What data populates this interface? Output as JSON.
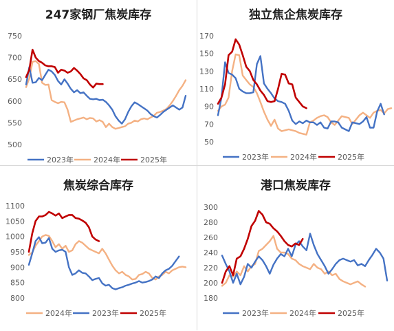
{
  "colors": {
    "2023年": "#4472C4",
    "2024年": "#F4B183",
    "2025年": "#C00000",
    "axis_text": "#595959",
    "title": "#1f1f1f"
  },
  "chart_data": [
    {
      "type": "line",
      "title": "247家钢厂焦炭库存",
      "ylim": [
        500,
        750
      ],
      "yticks": [
        500,
        550,
        600,
        650,
        700,
        750
      ],
      "grid": false,
      "legend_position": "bottom",
      "legend_order": [
        "2023年",
        "2024年",
        "2025年"
      ],
      "series": [
        {
          "name": "2023年",
          "values": [
            638,
            678,
            642,
            643,
            653,
            648,
            660,
            672,
            668,
            660,
            646,
            638,
            650,
            640,
            628,
            620,
            625,
            618,
            620,
            612,
            605,
            604,
            605,
            602,
            603,
            598,
            590,
            580,
            565,
            555,
            548,
            558,
            575,
            588,
            597,
            593,
            588,
            583,
            578,
            570,
            565,
            562,
            568,
            575,
            580,
            585,
            590,
            585,
            580,
            585,
            612
          ]
        },
        {
          "name": "2024年",
          "values": [
            632,
            652,
            690,
            692,
            685,
            642,
            637,
            638,
            602,
            598,
            595,
            598,
            597,
            580,
            552,
            555,
            558,
            560,
            562,
            558,
            561,
            560,
            553,
            556,
            552,
            540,
            548,
            540,
            536,
            538,
            540,
            542,
            548,
            550,
            555,
            553,
            558,
            560,
            558,
            562,
            566,
            573,
            575,
            578,
            582,
            590,
            600,
            612,
            625,
            635,
            648
          ]
        },
        {
          "name": "2025年",
          "values": [
            655,
            672,
            718,
            700,
            692,
            688,
            682,
            680,
            680,
            678,
            665,
            672,
            670,
            665,
            668,
            676,
            670,
            662,
            652,
            648,
            638,
            631,
            640,
            639,
            639
          ]
        }
      ]
    },
    {
      "type": "line",
      "title": "独立焦企焦炭库存",
      "ylim": [
        50,
        170
      ],
      "yticks": [
        50,
        70,
        90,
        110,
        130,
        150,
        170
      ],
      "grid": false,
      "legend_position": "bottom",
      "legend_order": [
        "2023年",
        "2024年",
        "2025年"
      ],
      "series": [
        {
          "name": "2023年",
          "values": [
            80,
            100,
            140,
            128,
            126,
            122,
            110,
            107,
            105,
            105,
            106,
            138,
            147,
            116,
            110,
            105,
            99,
            96,
            95,
            93,
            85,
            74,
            70,
            73,
            71,
            74,
            72,
            72,
            69,
            72,
            66,
            65,
            73,
            73,
            72,
            66,
            64,
            62,
            72,
            71,
            70,
            73,
            78,
            66,
            66,
            84,
            93,
            81
          ]
        },
        {
          "name": "2024年",
          "values": [
            85,
            90,
            92,
            100,
            130,
            149,
            148,
            125,
            120,
            115,
            112,
            105,
            95,
            84,
            75,
            68,
            75,
            65,
            62,
            63,
            64,
            63,
            62,
            60,
            59,
            58,
            72,
            74,
            77,
            79,
            80,
            78,
            72,
            69,
            74,
            79,
            78,
            77,
            70,
            75,
            80,
            83,
            80,
            77,
            83,
            85,
            86,
            82,
            87,
            88
          ]
        },
        {
          "name": "2025年",
          "values": [
            93,
            100,
            115,
            148,
            152,
            166,
            160,
            148,
            135,
            130,
            120,
            115,
            108,
            103,
            96,
            95,
            96,
            110,
            127,
            126,
            116,
            115,
            100,
            95,
            90,
            88
          ]
        }
      ]
    },
    {
      "type": "line",
      "title": "焦炭综合库存",
      "ylim": [
        800,
        1100
      ],
      "yticks": [
        800,
        850,
        900,
        950,
        1000,
        1050,
        1100
      ],
      "grid": false,
      "legend_position": "bottom",
      "legend_order": [
        "2024年",
        "2023年",
        "2025年"
      ],
      "series": [
        {
          "name": "2023年",
          "values": [
            908,
            945,
            985,
            998,
            978,
            980,
            995,
            960,
            950,
            955,
            957,
            950,
            900,
            875,
            880,
            890,
            882,
            880,
            870,
            858,
            862,
            865,
            848,
            840,
            843,
            832,
            828,
            832,
            835,
            840,
            843,
            847,
            850,
            855,
            850,
            852,
            855,
            860,
            870,
            865,
            880,
            890,
            895,
            905,
            920,
            935
          ]
        },
        {
          "name": "2024年",
          "values": [
            940,
            948,
            970,
            985,
            1000,
            1005,
            1002,
            985,
            965,
            975,
            960,
            970,
            950,
            955,
            975,
            985,
            980,
            970,
            960,
            955,
            950,
            945,
            960,
            945,
            925,
            905,
            890,
            880,
            885,
            875,
            870,
            860,
            862,
            875,
            878,
            885,
            880,
            865,
            860,
            870,
            875,
            885,
            880,
            890,
            895,
            900,
            902,
            900
          ]
        },
        {
          "name": "2025年",
          "values": [
            950,
            1010,
            1050,
            1065,
            1065,
            1070,
            1080,
            1075,
            1068,
            1075,
            1060,
            1065,
            1070,
            1070,
            1060,
            1058,
            1052,
            1045,
            1030,
            1000,
            990,
            985
          ]
        }
      ]
    },
    {
      "type": "line",
      "title": "港口焦炭库存",
      "ylim": [
        180,
        300
      ],
      "yticks": [
        180,
        200,
        220,
        240,
        260,
        280,
        300
      ],
      "grid": false,
      "legend_position": "bottom",
      "legend_order": [
        "2023年",
        "2024年",
        "2025年"
      ],
      "series": [
        {
          "name": "2023年",
          "values": [
            236,
            225,
            215,
            200,
            212,
            198,
            208,
            225,
            220,
            228,
            235,
            230,
            222,
            212,
            224,
            232,
            238,
            235,
            245,
            235,
            250,
            255,
            248,
            243,
            265,
            250,
            238,
            230,
            222,
            212,
            218,
            225,
            230,
            232,
            230,
            228,
            230,
            223,
            225,
            222,
            230,
            237,
            245,
            240,
            232,
            203
          ]
        },
        {
          "name": "2024年",
          "values": [
            196,
            200,
            210,
            208,
            215,
            210,
            222,
            215,
            222,
            225,
            242,
            245,
            250,
            255,
            262,
            245,
            240,
            240,
            238,
            232,
            230,
            225,
            222,
            220,
            218,
            225,
            220,
            218,
            212,
            215,
            210,
            212,
            205,
            202,
            200,
            198,
            200,
            202,
            198,
            195
          ]
        },
        {
          "name": "2025年",
          "values": [
            200,
            215,
            222,
            210,
            232,
            235,
            245,
            258,
            275,
            282,
            295,
            290,
            280,
            278,
            272,
            268,
            262,
            255,
            250,
            248,
            252,
            250,
            258
          ]
        }
      ]
    }
  ]
}
